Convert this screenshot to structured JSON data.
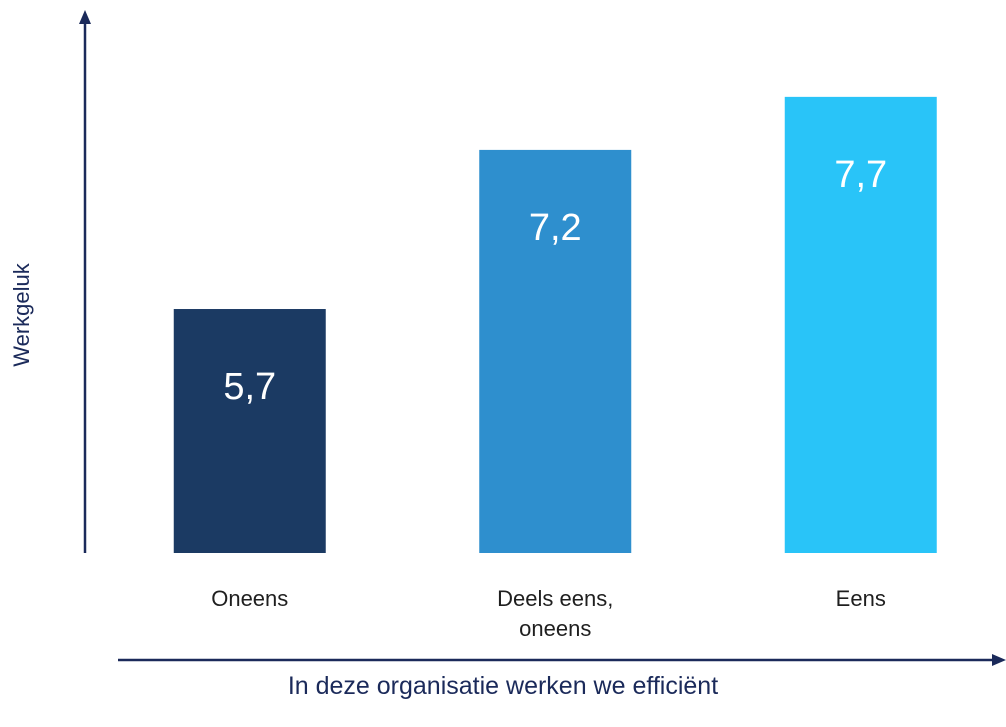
{
  "chart_data": {
    "type": "bar",
    "categories": [
      "Oneens",
      "Deels eens, oneens",
      "Eens"
    ],
    "values": [
      5.7,
      7.2,
      7.7
    ],
    "value_labels": [
      "5,7",
      "7,2",
      "7,7"
    ],
    "colors": [
      "#1b3a63",
      "#2e8fce",
      "#29c4f8"
    ],
    "ylim": [
      3.4,
      8.5
    ],
    "x_label": "In deze organisatie werken we efficiënt",
    "y_label": "Werkgeluk"
  }
}
